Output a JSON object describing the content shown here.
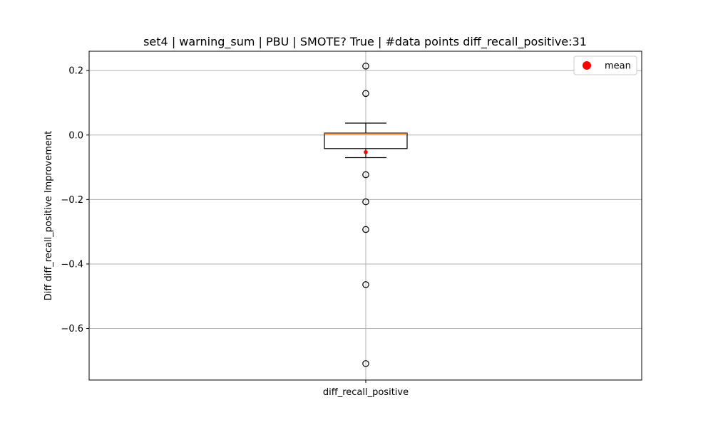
{
  "chart_data": {
    "type": "box",
    "title": "set4 | warning_sum | PBU | SMOTE? True | #data points diff_recall_positive:31",
    "xlabel": "",
    "ylabel": "Diff diff_recall_positive Improvement",
    "categories": [
      "diff_recall_positive"
    ],
    "ylim": [
      -0.76,
      0.26
    ],
    "yticks": [
      0.2,
      0.0,
      -0.2,
      -0.4,
      -0.6
    ],
    "ytick_labels": [
      "0.2",
      "0.0",
      "−0.2",
      "−0.4",
      "−0.6"
    ],
    "grid": true,
    "legend": {
      "position": "top-right",
      "entries": [
        "mean"
      ]
    },
    "series": [
      {
        "name": "diff_recall_positive",
        "whisker_high": 0.037,
        "q3": 0.006,
        "median": 0.004,
        "q1": -0.042,
        "whisker_low": -0.07,
        "mean": -0.053,
        "outliers": [
          0.214,
          0.129,
          -0.123,
          -0.207,
          -0.293,
          -0.464,
          -0.709
        ]
      }
    ],
    "colors": {
      "box": "#000000",
      "median": "#ff7f0e",
      "mean": "#ff0000",
      "grid": "#b0b0b0"
    }
  }
}
